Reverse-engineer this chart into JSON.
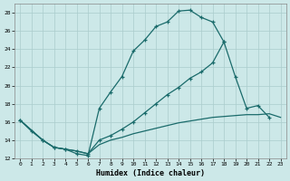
{
  "xlabel": "Humidex (Indice chaleur)",
  "xlim": [
    -0.5,
    23.5
  ],
  "ylim": [
    12,
    29
  ],
  "xticks": [
    0,
    1,
    2,
    3,
    4,
    5,
    6,
    7,
    8,
    9,
    10,
    11,
    12,
    13,
    14,
    15,
    16,
    17,
    18,
    19,
    20,
    21,
    22,
    23
  ],
  "yticks": [
    12,
    14,
    16,
    18,
    20,
    22,
    24,
    26,
    28
  ],
  "background_color": "#cce8e8",
  "grid_color": "#aacccc",
  "line_color": "#1a6b6b",
  "line1_x": [
    0,
    1,
    2,
    3,
    4,
    5,
    6,
    7,
    8,
    9,
    10,
    11,
    12,
    13,
    14,
    15,
    16,
    17,
    18
  ],
  "line1_y": [
    16.2,
    15.0,
    14.0,
    13.2,
    13.0,
    12.5,
    12.3,
    17.5,
    19.3,
    21.0,
    23.8,
    25.0,
    26.5,
    27.0,
    28.2,
    28.3,
    27.5,
    27.0,
    24.8
  ],
  "line2_x": [
    0,
    2,
    3,
    4,
    5,
    6,
    7,
    8,
    9,
    10,
    11,
    12,
    13,
    14,
    15,
    16,
    17,
    18,
    19,
    20,
    21,
    22
  ],
  "line2_y": [
    16.2,
    14.0,
    13.2,
    13.0,
    12.8,
    12.5,
    14.0,
    14.5,
    15.2,
    16.0,
    17.0,
    18.0,
    19.0,
    19.8,
    20.8,
    21.5,
    22.5,
    24.8,
    21.0,
    17.5,
    17.8,
    16.5
  ],
  "line3_x": [
    0,
    2,
    3,
    4,
    5,
    6,
    7,
    8,
    9,
    10,
    11,
    12,
    13,
    14,
    15,
    16,
    17,
    18,
    19,
    20,
    21,
    22,
    23
  ],
  "line3_y": [
    16.2,
    14.0,
    13.2,
    13.0,
    12.8,
    12.5,
    13.5,
    14.0,
    14.3,
    14.7,
    15.0,
    15.3,
    15.6,
    15.9,
    16.1,
    16.3,
    16.5,
    16.6,
    16.7,
    16.8,
    16.8,
    16.9,
    16.5
  ]
}
